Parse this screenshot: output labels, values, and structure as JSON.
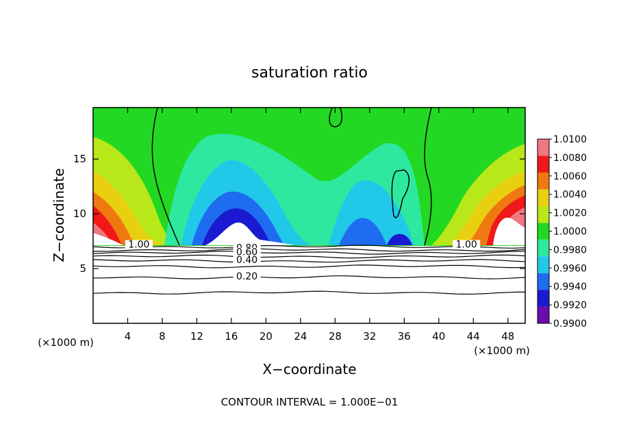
{
  "chart_data": {
    "type": "heatmap",
    "title": "saturation ratio",
    "xlabel": "X−coordinate",
    "ylabel": "Z−coordinate",
    "x_unit_left": "(×1000 m)",
    "x_unit_right": "(×1000 m)",
    "footer": "CONTOUR INTERVAL = 1.000E−01",
    "xlim": [
      0,
      50
    ],
    "ylim": [
      0,
      19.7
    ],
    "x_ticks": [
      4,
      8,
      12,
      16,
      20,
      24,
      28,
      32,
      36,
      40,
      44,
      48
    ],
    "x_tick_labels": [
      "4",
      "8",
      "12",
      "16",
      "20",
      "24",
      "28",
      "32",
      "36",
      "40",
      "44",
      "48"
    ],
    "y_ticks": [
      5,
      10,
      15
    ],
    "y_tick_labels": [
      "5",
      "10",
      "15"
    ],
    "colorbar": {
      "levels": [
        0.99,
        0.992,
        0.994,
        0.996,
        0.998,
        1.0,
        1.002,
        1.004,
        1.006,
        1.008,
        1.01
      ],
      "labels": [
        "0.9900",
        "0.9920",
        "0.9940",
        "0.9960",
        "0.9980",
        "1.0000",
        "1.0020",
        "1.0040",
        "1.0060",
        "1.0080",
        "1.0100"
      ],
      "colors": [
        "#6a0dad",
        "#1a1ad0",
        "#1e6cf0",
        "#22c8e8",
        "#2ee8a0",
        "#22d822",
        "#b8e81a",
        "#e8d010",
        "#f07810",
        "#f01818",
        "#f07880"
      ]
    },
    "contour_labels": [
      {
        "text": "1.00",
        "x": 5.3,
        "y": 7.1
      },
      {
        "text": "1.00",
        "x": 43.2,
        "y": 7.1
      },
      {
        "text": "0.80",
        "x": 17.8,
        "y": 6.8
      },
      {
        "text": "0.60",
        "x": 17.8,
        "y": 6.4
      },
      {
        "text": "0.40",
        "x": 17.8,
        "y": 5.7
      },
      {
        "text": "0.20",
        "x": 17.8,
        "y": 4.2
      }
    ],
    "low_contours_z": [
      7.0,
      6.7,
      6.45,
      6.1,
      5.7,
      5.2,
      4.2,
      2.8
    ]
  }
}
